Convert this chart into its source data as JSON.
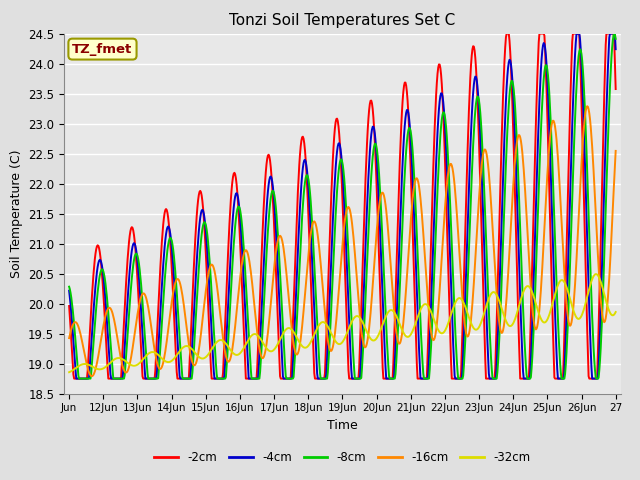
{
  "title": "Tonzi Soil Temperatures Set C",
  "xlabel": "Time",
  "ylabel": "Soil Temperature (C)",
  "annotation": "TZ_fmet",
  "ylim": [
    18.5,
    24.5
  ],
  "colors": {
    "-2cm": "#ff0000",
    "-4cm": "#0000cc",
    "-8cm": "#00cc00",
    "-16cm": "#ff8800",
    "-32cm": "#dddd00"
  },
  "legend_labels": [
    "-2cm",
    "-4cm",
    "-8cm",
    "-16cm",
    "-32cm"
  ],
  "tick_labels": [
    "Jun",
    "12Jun",
    "13Jun",
    "14Jun",
    "15Jun",
    "16Jun",
    "17Jun",
    "18Jun",
    "19Jun",
    "20Jun",
    "21Jun",
    "22Jun",
    "23Jun",
    "24Jun",
    "25Jun",
    "26Jun",
    "27"
  ],
  "bg_color": "#e0e0e0",
  "axes_bg": "#e8e8e8",
  "linewidth": 1.4
}
